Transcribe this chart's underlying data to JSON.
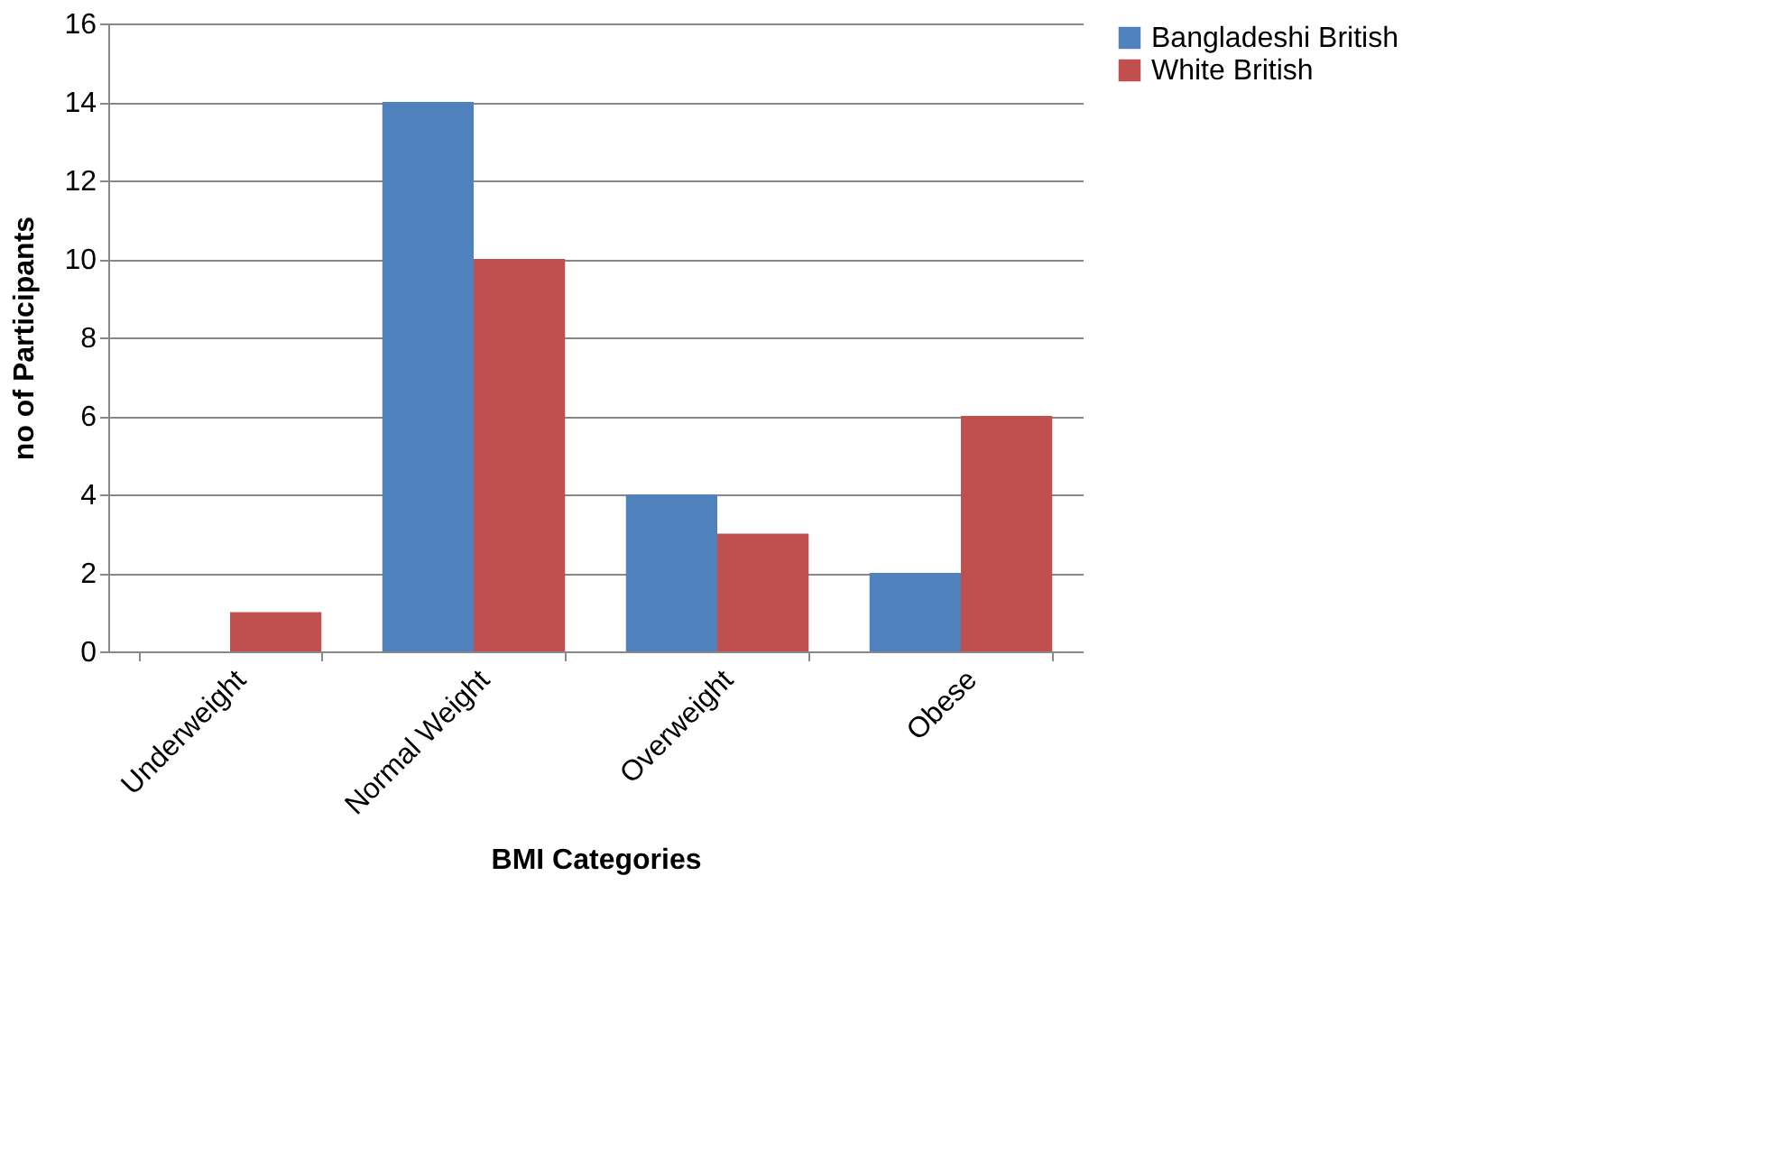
{
  "chart_data": {
    "type": "bar",
    "xlabel": "BMI Categories",
    "ylabel": "no of Participants",
    "categories": [
      "Underweight",
      "Normal Weight",
      "Overweight",
      "Obese"
    ],
    "series": [
      {
        "name": "Bangladeshi British",
        "color": "#4f81bd",
        "values": [
          0,
          14,
          4,
          2
        ]
      },
      {
        "name": "White British",
        "color": "#c0504d",
        "values": [
          1,
          10,
          3,
          6
        ]
      }
    ],
    "ylim": [
      0,
      16
    ],
    "yticks": [
      0,
      2,
      4,
      6,
      8,
      10,
      12,
      14,
      16
    ],
    "grid": "y",
    "legend": "right"
  }
}
